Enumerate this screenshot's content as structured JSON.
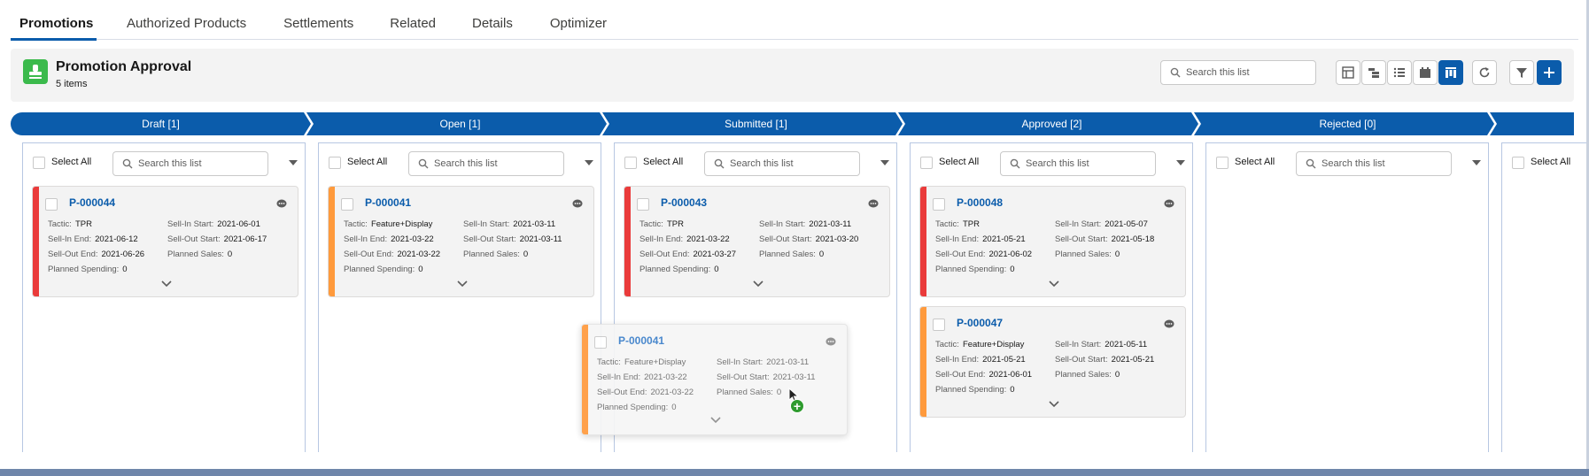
{
  "tabs": [
    "Promotions",
    "Authorized Products",
    "Settlements",
    "Related",
    "Details",
    "Optimizer"
  ],
  "header": {
    "title": "Promotion Approval",
    "subtitle": "5 items",
    "search_placeholder": "Search this list"
  },
  "stages": [
    "Draft [1]",
    "Open [1]",
    "Submitted [1]",
    "Approved [2]",
    "Rejected [0]"
  ],
  "column_toolbar": {
    "select_all": "Select All",
    "search_placeholder": "Search this list"
  },
  "field_labels": {
    "tactic": "Tactic:",
    "sell_in_start": "Sell-In Start:",
    "sell_in_end": "Sell-In End:",
    "sell_out_start": "Sell-Out Start:",
    "sell_out_end": "Sell-Out End:",
    "planned_sales": "Planned Sales:",
    "planned_spending": "Planned Spending:"
  },
  "cards": [
    {
      "id": "P-000044",
      "tactic": "TPR",
      "sell_in_start": "2021-06-01",
      "sell_in_end": "2021-06-12",
      "sell_out_start": "2021-06-17",
      "sell_out_end": "2021-06-26",
      "planned_sales": "0",
      "planned_spending": "0",
      "stripe": "#ea3b3b"
    },
    {
      "id": "P-000041",
      "tactic": "Feature+Display",
      "sell_in_start": "2021-03-11",
      "sell_in_end": "2021-03-22",
      "sell_out_start": "2021-03-11",
      "sell_out_end": "2021-03-22",
      "planned_sales": "0",
      "planned_spending": "0",
      "stripe": "#ff9a3c"
    },
    {
      "id": "P-000043",
      "tactic": "TPR",
      "sell_in_start": "2021-03-11",
      "sell_in_end": "2021-03-22",
      "sell_out_start": "2021-03-20",
      "sell_out_end": "2021-03-27",
      "planned_sales": "0",
      "planned_spending": "0",
      "stripe": "#ea3b3b"
    },
    {
      "id": "P-000048",
      "tactic": "TPR",
      "sell_in_start": "2021-05-07",
      "sell_in_end": "2021-05-21",
      "sell_out_start": "2021-05-18",
      "sell_out_end": "2021-06-02",
      "planned_sales": "0",
      "planned_spending": "0",
      "stripe": "#ea3b3b"
    },
    {
      "id": "P-000047",
      "tactic": "Feature+Display",
      "sell_in_start": "2021-05-11",
      "sell_in_end": "2021-05-21",
      "sell_out_start": "2021-05-21",
      "sell_out_end": "2021-06-01",
      "planned_sales": "0",
      "planned_spending": "0",
      "stripe": "#ff9a3c"
    }
  ],
  "ghost_card": {
    "id": "P-000041",
    "tactic": "Feature+Display",
    "sell_in_start": "2021-03-11",
    "sell_in_end": "2021-03-22",
    "sell_out_start": "2021-03-11",
    "sell_out_end": "2021-03-22",
    "planned_sales": "0",
    "planned_spending": "0"
  },
  "drop_badge": "+",
  "colors": {
    "brand": "#0b5cab",
    "red_stripe": "#ea3b3b",
    "orange_stripe": "#ff9a3c",
    "app_icon": "#3bba4c"
  }
}
